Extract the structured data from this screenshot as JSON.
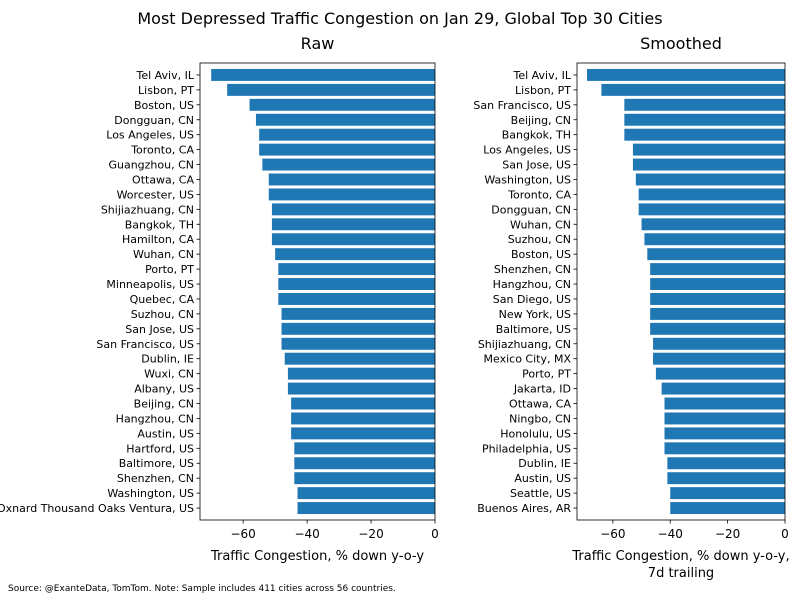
{
  "figure": {
    "title": "Most Depressed Traffic Congestion on Jan 29, Global Top 30 Cities",
    "source_note": "Source: @ExanteData, TomTom.   Note: Sample includes 411 cities across 56 countries."
  },
  "chart_data": [
    {
      "type": "bar",
      "orientation": "horizontal",
      "title": "Raw",
      "xlabel": "Traffic Congestion, % down y-o-y",
      "ylabel": "",
      "xlim": [
        -73.5,
        0
      ],
      "xticks": [
        -60,
        -40,
        -20,
        0
      ],
      "xtick_labels": [
        "−60",
        "−40",
        "−20",
        "0"
      ],
      "bar_color": "#1f77b4",
      "categories": [
        "Tel Aviv, IL",
        "Lisbon, PT",
        "Boston, US",
        "Dongguan, CN",
        "Los Angeles, US",
        "Toronto, CA",
        "Guangzhou, CN",
        "Ottawa, CA",
        "Worcester, US",
        "Shijiazhuang, CN",
        "Bangkok, TH",
        "Hamilton, CA",
        "Wuhan, CN",
        "Porto, PT",
        "Minneapolis, US",
        "Quebec, CA",
        "Suzhou, CN",
        "San Jose, US",
        "San Francisco, US",
        "Dublin, IE",
        "Wuxi, CN",
        "Albany, US",
        "Beijing, CN",
        "Hangzhou, CN",
        "Austin, US",
        "Hartford, US",
        "Baltimore, US",
        "Shenzhen, CN",
        "Washington, US",
        "Oxnard Thousand Oaks Ventura, US"
      ],
      "values": [
        -70,
        -65,
        -58,
        -56,
        -55,
        -55,
        -54,
        -52,
        -52,
        -51,
        -51,
        -51,
        -50,
        -49,
        -49,
        -49,
        -48,
        -48,
        -48,
        -47,
        -46,
        -46,
        -45,
        -45,
        -45,
        -44,
        -44,
        -44,
        -43,
        -43
      ]
    },
    {
      "type": "bar",
      "orientation": "horizontal",
      "title": "Smoothed",
      "xlabel": "Traffic Congestion, % down y-o-y,\n7d trailing",
      "ylabel": "",
      "xlim": [
        -72.5,
        0
      ],
      "xticks": [
        -60,
        -40,
        -20,
        0
      ],
      "xtick_labels": [
        "−60",
        "−40",
        "−20",
        "0"
      ],
      "bar_color": "#1f77b4",
      "categories": [
        "Tel Aviv, IL",
        "Lisbon, PT",
        "San Francisco, US",
        "Beijing, CN",
        "Bangkok, TH",
        "Los Angeles, US",
        "San Jose, US",
        "Washington, US",
        "Toronto, CA",
        "Dongguan, CN",
        "Wuhan, CN",
        "Suzhou, CN",
        "Boston, US",
        "Shenzhen, CN",
        "Hangzhou, CN",
        "San Diego, US",
        "New York, US",
        "Baltimore, US",
        "Shijiazhuang, CN",
        "Mexico City, MX",
        "Porto, PT",
        "Jakarta, ID",
        "Ottawa, CA",
        "Ningbo, CN",
        "Honolulu, US",
        "Philadelphia, US",
        "Dublin, IE",
        "Austin, US",
        "Seattle, US",
        "Buenos Aires, AR"
      ],
      "values": [
        -69,
        -64,
        -56,
        -56,
        -56,
        -53,
        -53,
        -52,
        -51,
        -51,
        -50,
        -49,
        -48,
        -47,
        -47,
        -47,
        -47,
        -47,
        -46,
        -46,
        -45,
        -43,
        -42,
        -42,
        -42,
        -42,
        -41,
        -41,
        -40,
        -40
      ]
    }
  ]
}
